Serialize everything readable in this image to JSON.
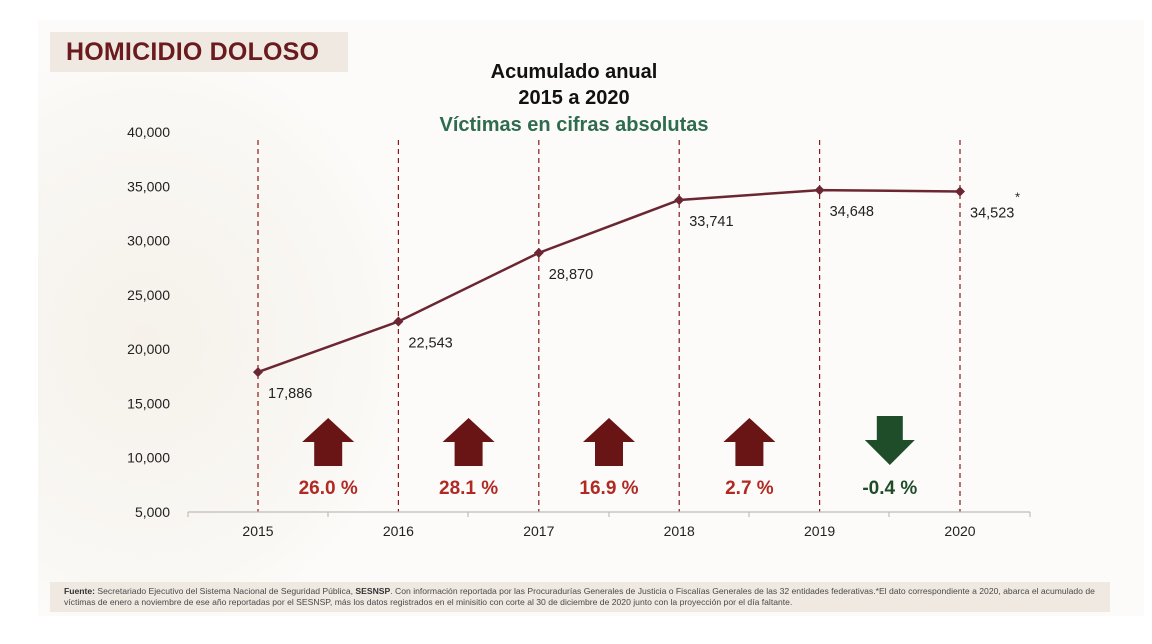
{
  "header": {
    "title": "HOMICIDIO DOLOSO"
  },
  "chart_data": {
    "type": "line",
    "title_lines": [
      "Acumulado anual",
      "2015 a 2020"
    ],
    "subtitle": "Víctimas en cifras absolutas",
    "x": [
      "2015",
      "2016",
      "2017",
      "2018",
      "2019",
      "2020"
    ],
    "values": [
      17886,
      22543,
      28870,
      33741,
      34648,
      34523
    ],
    "data_labels": [
      "17,886",
      "22,543",
      "28,870",
      "33,741",
      "34,648",
      "34,523"
    ],
    "footnote_marker": "*",
    "ylim": [
      5000,
      40000
    ],
    "yticks": [
      5000,
      10000,
      15000,
      20000,
      25000,
      30000,
      35000,
      40000
    ],
    "ytick_labels": [
      "5,000",
      "10,000",
      "15,000",
      "20,000",
      "25,000",
      "30,000",
      "35,000",
      "40,000"
    ],
    "grid": "vertical dashed lines at each year",
    "changes": [
      {
        "label": "26.0 %",
        "direction": "up"
      },
      {
        "label": "28.1 %",
        "direction": "up"
      },
      {
        "label": "16.9 %",
        "direction": "up"
      },
      {
        "label": "2.7 %",
        "direction": "up"
      },
      {
        "label": "-0.4 %",
        "direction": "down"
      }
    ],
    "colors": {
      "line": "#6b2632",
      "up": "#6a1515",
      "up_text": "#b02a23",
      "down": "#1f4d2a",
      "title_green": "#2f6b4f",
      "grid": "#8a1a1a"
    }
  },
  "footer": {
    "source_label": "Fuente:",
    "source_text_1": "Secretariado Ejecutivo del Sistema Nacional de Seguridad Pública, ",
    "source_bold": "SESNSP",
    "source_text_2": ". Con información reportada por las Procuradurías Generales de Justicia o Fiscalías Generales de las 32 entidades federativas.*El dato correspondiente a 2020, abarca el acumulado de víctimas de enero a noviembre de ese año reportadas por el SESNSP, más los datos registrados en el minisitio con corte al 30 de diciembre de 2020 junto con la proyección por el día faltante."
  }
}
